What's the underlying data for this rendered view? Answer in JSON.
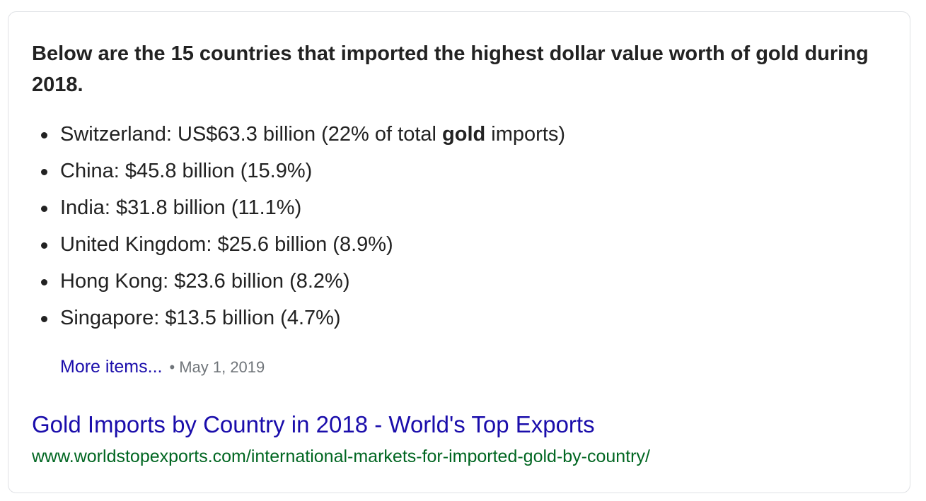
{
  "snippet": {
    "heading": "Below are the 15 countries that imported the highest dollar value worth of gold during 2018.",
    "items": [
      {
        "pre": "Switzerland: US$63.3 billion (22% of total ",
        "bold": "gold",
        "post": " imports)"
      },
      {
        "pre": "China: $45.8 billion (15.9%)",
        "bold": "",
        "post": ""
      },
      {
        "pre": "India: $31.8 billion (11.1%)",
        "bold": "",
        "post": ""
      },
      {
        "pre": "United Kingdom: $25.6 billion (8.9%)",
        "bold": "",
        "post": ""
      },
      {
        "pre": "Hong Kong: $23.6 billion (8.2%)",
        "bold": "",
        "post": ""
      },
      {
        "pre": "Singapore: $13.5 billion (4.7%)",
        "bold": "",
        "post": ""
      }
    ],
    "more_label": "More items...",
    "separator": "•",
    "date": "May 1, 2019"
  },
  "result": {
    "title": "Gold Imports by Country in 2018 - World's Top Exports",
    "url": "www.worldstopexports.com/international-markets-for-imported-gold-by-country/"
  },
  "colors": {
    "link": "#1a0dab",
    "url_green": "#006621",
    "meta_gray": "#70757a",
    "border": "#dfe1e5"
  }
}
